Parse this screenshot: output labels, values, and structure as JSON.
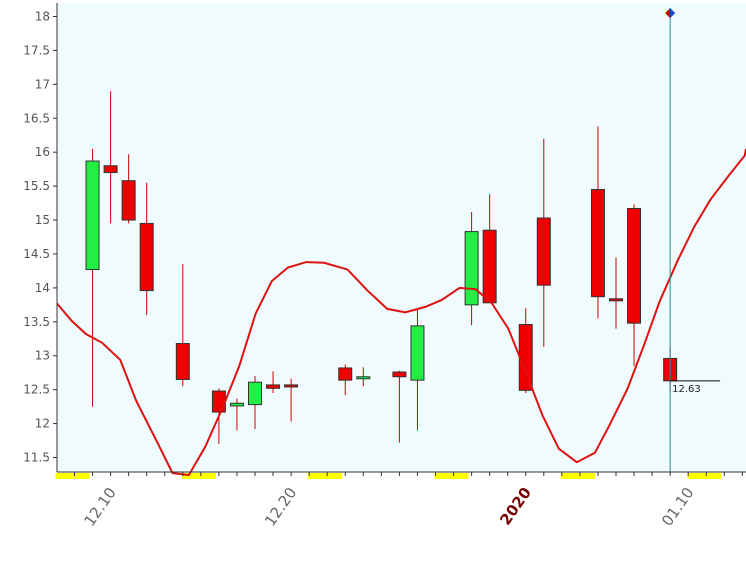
{
  "chart_data": {
    "type": "candlestick",
    "y_axis": {
      "min": 11.25,
      "max": 18.2,
      "ticks": [
        11.5,
        12,
        12.5,
        13,
        13.5,
        14,
        14.5,
        15,
        15.5,
        16,
        16.5,
        17,
        17.5,
        18
      ],
      "tick_labels": [
        "11.5",
        "12",
        "12.5",
        "13",
        "13.5",
        "14",
        "14.5",
        "15",
        "15.5",
        "16",
        "16.5",
        "17",
        "17.5",
        "18"
      ]
    },
    "x_axis": {
      "date_labels": [
        {
          "text": "12.10",
          "highlight": false
        },
        {
          "text": "12.20",
          "highlight": false
        },
        {
          "text": "2020",
          "highlight": true
        },
        {
          "text": "01.10",
          "highlight": false
        }
      ],
      "label_slot_indices": [
        2,
        12,
        25,
        34
      ]
    },
    "candles": [
      {
        "date": "12.09",
        "open": 14.27,
        "high": 16.05,
        "low": 12.25,
        "close": 15.87
      },
      {
        "date": "12.10",
        "open": 15.8,
        "high": 16.9,
        "low": 14.95,
        "close": 15.7
      },
      {
        "date": "12.11",
        "open": 15.58,
        "high": 15.97,
        "low": 14.95,
        "close": 15.0
      },
      {
        "date": "12.12",
        "open": 14.95,
        "high": 15.55,
        "low": 13.6,
        "close": 13.96
      },
      {
        "date": "12.13",
        "open": 13.18,
        "high": 14.35,
        "low": 12.55,
        "close": 12.65
      },
      {
        "date": "12.16",
        "open": 12.48,
        "high": 12.52,
        "low": 11.7,
        "close": 12.17
      },
      {
        "date": "12.17",
        "open": 12.26,
        "high": 12.37,
        "low": 11.9,
        "close": 12.3
      },
      {
        "date": "12.18",
        "open": 12.28,
        "high": 12.7,
        "low": 11.92,
        "close": 12.61
      },
      {
        "date": "12.19",
        "open": 12.57,
        "high": 12.77,
        "low": 12.45,
        "close": 12.52
      },
      {
        "date": "12.20",
        "open": 12.57,
        "high": 12.66,
        "low": 12.03,
        "close": 12.54
      },
      {
        "date": "12.23",
        "open": 12.82,
        "high": 12.87,
        "low": 12.42,
        "close": 12.64
      },
      {
        "date": "12.24",
        "open": 12.69,
        "high": 12.83,
        "low": 12.55,
        "close": 12.69
      },
      {
        "date": "12.26",
        "open": 12.76,
        "high": 12.78,
        "low": 11.72,
        "close": 12.69
      },
      {
        "date": "12.27",
        "open": 12.64,
        "high": 13.7,
        "low": 11.9,
        "close": 13.44
      },
      {
        "date": "12.30",
        "open": 13.75,
        "high": 15.12,
        "low": 13.45,
        "close": 14.83
      },
      {
        "date": "12.31",
        "open": 14.85,
        "high": 15.38,
        "low": 13.78,
        "close": 13.78
      },
      {
        "date": "01.02",
        "open": 13.46,
        "high": 13.7,
        "low": 12.45,
        "close": 12.49
      },
      {
        "date": "01.03",
        "open": 15.03,
        "high": 16.2,
        "low": 13.13,
        "close": 14.04
      },
      {
        "date": "01.06",
        "open": 15.45,
        "high": 16.38,
        "low": 13.55,
        "close": 13.87
      },
      {
        "date": "01.07",
        "open": 13.84,
        "high": 14.45,
        "low": 13.4,
        "close": 13.81
      },
      {
        "date": "01.08",
        "open": 15.17,
        "high": 15.23,
        "low": 12.85,
        "close": 13.48
      },
      {
        "date": "01.09",
        "open": 12.96,
        "high": 13.13,
        "low": 12.48,
        "close": 12.63
      }
    ],
    "candle_slot_indices": [
      1,
      2,
      3,
      4,
      6,
      8,
      9,
      10,
      11,
      12,
      15,
      16,
      18,
      19,
      22,
      23,
      25,
      26,
      29,
      30,
      31,
      33
    ],
    "slot_count": 39,
    "line_series": {
      "color": "#dd1111",
      "slots": [
        0,
        0.8,
        1.6,
        2.5,
        3.5,
        4.4,
        5.6,
        6.4,
        7.3,
        8.2,
        9.2,
        10.1,
        11.0,
        11.9,
        12.8,
        13.8,
        14.8,
        16.1,
        17.2,
        18.3,
        19.3,
        20.4,
        21.3,
        22.3,
        23.2,
        24.1,
        25.0,
        26.0,
        26.9,
        27.8,
        28.8,
        29.8,
        30.6,
        31.6,
        32.5,
        33.4,
        34.4,
        35.3,
        36.2,
        37.2,
        38.1,
        38.5
      ],
      "values": [
        13.77,
        13.52,
        13.32,
        13.19,
        12.94,
        12.33,
        11.7,
        11.27,
        11.24,
        11.65,
        12.25,
        12.85,
        13.62,
        14.1,
        14.3,
        14.38,
        14.37,
        14.27,
        13.96,
        13.69,
        13.64,
        13.72,
        13.82,
        14.0,
        13.98,
        13.77,
        13.4,
        12.74,
        12.12,
        11.63,
        11.43,
        11.57,
        11.97,
        12.51,
        13.14,
        13.81,
        14.41,
        14.9,
        15.3,
        15.65,
        15.95,
        16.05
      ]
    },
    "marker": {
      "slot_index": 33,
      "value": 18.05,
      "colors": [
        "#cc0000",
        "#2040d0"
      ]
    },
    "last_price_label": "12.63",
    "colors": {
      "plot_background": "#f0fbfd",
      "up_candle": "#22ee44",
      "down_candle": "#ee0000",
      "candle_border": "#333333",
      "wick": "#cc0000",
      "cursor_line": "#2a8a9a",
      "axis_label": "#555555",
      "highlight_label": "#7a0000",
      "weekend_band": "#ffff00"
    }
  }
}
